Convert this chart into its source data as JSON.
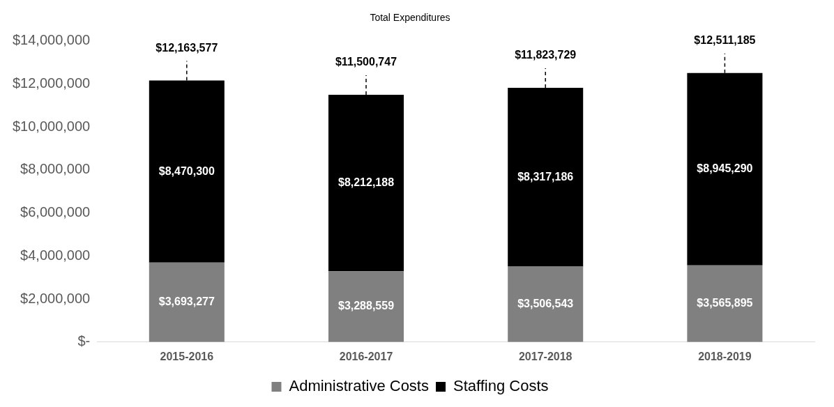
{
  "chart_data": {
    "type": "bar",
    "title": "Total Expenditures",
    "stacked": true,
    "categories": [
      "2015-2016",
      "2016-2017",
      "2017-2018",
      "2018-2019"
    ],
    "series": [
      {
        "name": "Administrative Costs",
        "color": "#808080",
        "values": [
          3693277,
          3288559,
          3506543,
          3565895
        ],
        "value_labels": [
          "$3,693,277",
          "$3,288,559",
          "$3,506,543",
          "$3,565,895"
        ]
      },
      {
        "name": "Staffing Costs",
        "color": "#000000",
        "values": [
          8470300,
          8212188,
          8317186,
          8945290
        ],
        "value_labels": [
          "$8,470,300",
          "$8,212,188",
          "$8,317,186",
          "$8,945,290"
        ]
      }
    ],
    "totals": [
      "$12,163,577",
      "$11,500,747",
      "$11,823,729",
      "$12,511,185"
    ],
    "ylim": [
      0,
      14000000
    ],
    "yticks": [
      {
        "value": 0,
        "label": "$-"
      },
      {
        "value": 2000000,
        "label": "$2,000,000"
      },
      {
        "value": 4000000,
        "label": "$4,000,000"
      },
      {
        "value": 6000000,
        "label": "$6,000,000"
      },
      {
        "value": 8000000,
        "label": "$8,000,000"
      },
      {
        "value": 10000000,
        "label": "$10,000,000"
      },
      {
        "value": 12000000,
        "label": "$12,000,000"
      },
      {
        "value": 14000000,
        "label": "$14,000,000"
      }
    ],
    "grid": false,
    "legend": "bottom"
  }
}
